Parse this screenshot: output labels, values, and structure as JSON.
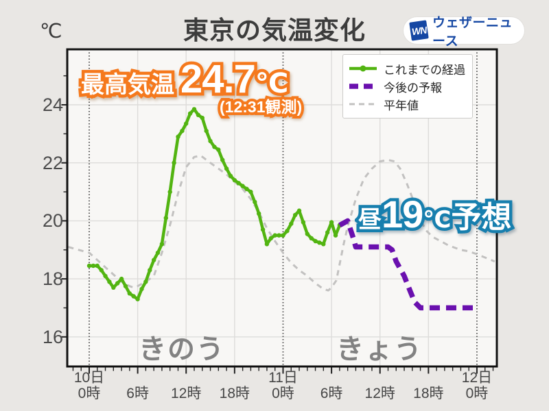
{
  "header": {
    "title": "東京の気温変化",
    "unit_label": "℃",
    "logo": {
      "mark": "WN",
      "text": "ウェザーニュース",
      "blue": "#1547a3"
    }
  },
  "legend": {
    "items": [
      {
        "label": "これまでの経過",
        "style": "solid-dot",
        "color": "#52b411"
      },
      {
        "label": "今後の予報",
        "style": "dashed-thick",
        "color": "#6a10ae"
      },
      {
        "label": "平年値",
        "style": "dashed-thin",
        "color": "#c2c1c0"
      }
    ]
  },
  "annotations": {
    "max_temp": {
      "label": "最高気温",
      "value": "24.7",
      "unit": "℃",
      "note": "(12:31観測)",
      "color": "#f5791d"
    },
    "forecast": {
      "prefix": "昼",
      "value": "19",
      "unit": "℃",
      "suffix": "予想",
      "color": "#177fae"
    },
    "day_labels": {
      "yesterday": "きのう",
      "today": "きょう"
    }
  },
  "chart_data": {
    "type": "line",
    "title": "東京の気温変化",
    "ylabel": "℃",
    "x_unit": "hours_from_day10_00h",
    "ylim": [
      15.0,
      25.9
    ],
    "yticks": [
      16,
      18,
      20,
      22,
      24
    ],
    "grid": true,
    "legend_position": "top-right",
    "xticks": [
      {
        "t": 0,
        "day": "10日",
        "hour": "0時"
      },
      {
        "t": 6,
        "hour": "6時"
      },
      {
        "t": 12,
        "hour": "12時"
      },
      {
        "t": 18,
        "hour": "18時"
      },
      {
        "t": 24,
        "day": "11日",
        "hour": "0時"
      },
      {
        "t": 30,
        "hour": "6時"
      },
      {
        "t": 36,
        "hour": "12時"
      },
      {
        "t": 42,
        "hour": "18時"
      },
      {
        "t": 48,
        "day": "12日",
        "hour": "0時"
      }
    ],
    "day_boundaries": [
      0,
      24,
      48
    ],
    "series": [
      {
        "name": "平年値",
        "color": "#c2c1c0",
        "style": "dashed-thin",
        "marker": false,
        "points": [
          [
            -2.6,
            19.1
          ],
          [
            -1.3,
            19.0
          ],
          [
            0,
            18.9
          ],
          [
            1,
            18.65
          ],
          [
            2,
            18.4
          ],
          [
            3,
            18.15
          ],
          [
            4,
            17.9
          ],
          [
            5,
            17.75
          ],
          [
            5.5,
            17.7
          ],
          [
            6,
            17.75
          ],
          [
            7,
            17.9
          ],
          [
            8,
            18.1
          ],
          [
            9,
            18.9
          ],
          [
            10,
            19.85
          ],
          [
            11,
            20.95
          ],
          [
            12,
            21.85
          ],
          [
            13,
            22.2
          ],
          [
            13.8,
            22.25
          ],
          [
            15,
            22.0
          ],
          [
            16,
            21.8
          ],
          [
            17,
            21.6
          ],
          [
            18,
            21.35
          ],
          [
            19,
            21.1
          ],
          [
            20,
            20.75
          ],
          [
            21,
            20.3
          ],
          [
            22,
            19.75
          ],
          [
            23,
            19.3
          ],
          [
            24,
            18.9
          ],
          [
            25,
            18.55
          ],
          [
            26,
            18.3
          ],
          [
            27,
            18.1
          ],
          [
            28,
            17.85
          ],
          [
            29,
            17.65
          ],
          [
            29.6,
            17.6
          ],
          [
            30,
            17.7
          ],
          [
            30.6,
            17.95
          ],
          [
            31.5,
            19.2
          ],
          [
            32,
            19.8
          ],
          [
            33,
            20.75
          ],
          [
            34,
            21.45
          ],
          [
            35,
            21.8
          ],
          [
            36,
            22.05
          ],
          [
            37,
            22.1
          ],
          [
            37.8,
            22.05
          ],
          [
            38.5,
            21.8
          ],
          [
            39.3,
            21.3
          ],
          [
            40,
            20.8
          ],
          [
            40.8,
            20.2
          ],
          [
            41.6,
            19.7
          ],
          [
            42.5,
            19.45
          ],
          [
            43.5,
            19.3
          ],
          [
            44.5,
            19.15
          ],
          [
            46,
            19.0
          ],
          [
            47,
            18.95
          ],
          [
            48,
            18.85
          ],
          [
            50.2,
            18.6
          ]
        ]
      },
      {
        "name": "これまでの経過",
        "color": "#52b411",
        "style": "solid",
        "marker": true,
        "points": [
          [
            0,
            18.45
          ],
          [
            0.5,
            18.45
          ],
          [
            1,
            18.45
          ],
          [
            1.5,
            18.3
          ],
          [
            2,
            18.1
          ],
          [
            2.5,
            17.9
          ],
          [
            3,
            17.7
          ],
          [
            3.5,
            17.85
          ],
          [
            4,
            18.0
          ],
          [
            4.5,
            17.75
          ],
          [
            5,
            17.5
          ],
          [
            5.5,
            17.4
          ],
          [
            6,
            17.3
          ],
          [
            6.5,
            17.65
          ],
          [
            7,
            17.9
          ],
          [
            7.5,
            18.3
          ],
          [
            8,
            18.65
          ],
          [
            8.5,
            18.9
          ],
          [
            9,
            19.2
          ],
          [
            9.5,
            20.1
          ],
          [
            10,
            21.0
          ],
          [
            10.5,
            22.0
          ],
          [
            11,
            22.9
          ],
          [
            11.5,
            23.1
          ],
          [
            12,
            23.35
          ],
          [
            12.5,
            23.7
          ],
          [
            13,
            23.85
          ],
          [
            13.5,
            23.65
          ],
          [
            14,
            23.55
          ],
          [
            14.5,
            23.1
          ],
          [
            15,
            22.75
          ],
          [
            15.5,
            22.55
          ],
          [
            16,
            22.45
          ],
          [
            16.5,
            22.1
          ],
          [
            17,
            21.8
          ],
          [
            17.5,
            21.55
          ],
          [
            18,
            21.4
          ],
          [
            18.5,
            21.3
          ],
          [
            19,
            21.2
          ],
          [
            19.5,
            21.1
          ],
          [
            20,
            21.0
          ],
          [
            20.5,
            20.65
          ],
          [
            21,
            20.25
          ],
          [
            21.5,
            19.7
          ],
          [
            22,
            19.2
          ],
          [
            22.5,
            19.4
          ],
          [
            23,
            19.5
          ],
          [
            23.5,
            19.5
          ],
          [
            24,
            19.5
          ],
          [
            24.5,
            19.65
          ],
          [
            25,
            19.9
          ],
          [
            25.5,
            20.2
          ],
          [
            26,
            20.35
          ],
          [
            26.5,
            19.95
          ],
          [
            27,
            19.55
          ],
          [
            27.5,
            19.4
          ],
          [
            28,
            19.3
          ],
          [
            28.5,
            19.25
          ],
          [
            29,
            19.2
          ],
          [
            29.5,
            19.6
          ],
          [
            30,
            19.95
          ],
          [
            30.5,
            19.5
          ],
          [
            31,
            19.85
          ]
        ]
      },
      {
        "name": "今後の予報",
        "color": "#6a10ae",
        "style": "dashed-thick",
        "marker": false,
        "points": [
          [
            31,
            19.85
          ],
          [
            32,
            20.0
          ],
          [
            32.7,
            19.4
          ],
          [
            33,
            19.1
          ],
          [
            34,
            19.1
          ],
          [
            35,
            19.1
          ],
          [
            36,
            19.1
          ],
          [
            37,
            19.1
          ],
          [
            37.5,
            19.0
          ],
          [
            38,
            18.6
          ],
          [
            39,
            18.1
          ],
          [
            39.7,
            17.6
          ],
          [
            40.3,
            17.2
          ],
          [
            41,
            17.0
          ],
          [
            42,
            17.0
          ],
          [
            43,
            17.0
          ],
          [
            44,
            17.0
          ],
          [
            45,
            17.0
          ],
          [
            46,
            17.0
          ],
          [
            47,
            17.0
          ],
          [
            48,
            17.0
          ]
        ]
      }
    ]
  },
  "colors": {
    "page_bg": "#e9e7e4",
    "plot_bg": "#f8f7f5",
    "grid": "#dddcda",
    "border": "#111111",
    "day_boundary": "#4a4a4a"
  }
}
